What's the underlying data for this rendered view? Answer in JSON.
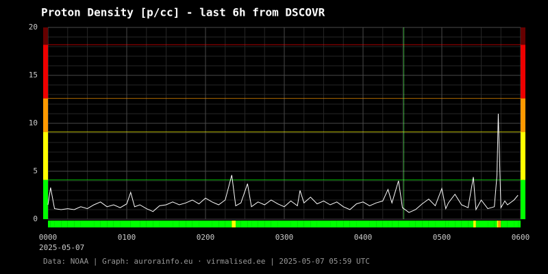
{
  "chart_data": {
    "type": "line",
    "title": "Proton Density [p/cc] - last 6h from DSCOVR",
    "x_date_label": "2025-05-07",
    "footer": "Data: NOAA | Graph: aurorainfo.eu · virmalised.ee | 2025-05-07 05:59 UTC",
    "x": [
      0,
      2,
      5,
      10,
      15,
      20,
      25,
      30,
      35,
      40,
      45,
      50,
      55,
      60,
      63,
      66,
      70,
      75,
      80,
      85,
      90,
      95,
      100,
      105,
      110,
      115,
      120,
      125,
      130,
      135,
      140,
      143,
      147,
      152,
      155,
      160,
      165,
      170,
      175,
      180,
      185,
      190,
      192,
      195,
      200,
      205,
      210,
      215,
      220,
      225,
      230,
      235,
      240,
      245,
      250,
      255,
      259,
      262,
      267,
      270,
      275,
      280,
      285,
      290,
      295,
      300,
      303,
      305,
      310,
      315,
      320,
      324,
      326,
      330,
      335,
      340,
      342,
      343,
      345,
      348,
      350,
      355,
      358
    ],
    "series": [
      {
        "color": "#ffffff",
        "values": [
          1.5,
          3.3,
          1.1,
          1.0,
          1.1,
          1.0,
          1.3,
          1.1,
          1.5,
          1.8,
          1.3,
          1.5,
          1.2,
          1.6,
          2.8,
          1.3,
          1.5,
          1.1,
          0.8,
          1.4,
          1.5,
          1.8,
          1.5,
          1.7,
          2.0,
          1.6,
          2.2,
          1.8,
          1.5,
          2.0,
          4.6,
          1.4,
          1.7,
          3.7,
          1.3,
          1.8,
          1.5,
          2.0,
          1.6,
          1.3,
          1.9,
          1.4,
          3.0,
          1.7,
          2.3,
          1.6,
          1.9,
          1.5,
          1.8,
          1.3,
          1.0,
          1.6,
          1.8,
          1.4,
          1.7,
          1.9,
          3.1,
          1.7,
          4.0,
          1.2,
          0.7,
          1.0,
          1.6,
          2.1,
          1.4,
          3.2,
          1.1,
          1.7,
          2.6,
          1.5,
          1.2,
          4.4,
          1.0,
          2.0,
          1.1,
          1.3,
          4.6,
          11.0,
          1.2,
          1.9,
          1.5,
          2.0,
          2.5
        ]
      }
    ],
    "xlim": [
      0,
      360
    ],
    "xticks": [
      {
        "value": 0,
        "label": "0000"
      },
      {
        "value": 60,
        "label": "0100"
      },
      {
        "value": 120,
        "label": "0200"
      },
      {
        "value": 180,
        "label": "0300"
      },
      {
        "value": 240,
        "label": "0400"
      },
      {
        "value": 300,
        "label": "0500"
      },
      {
        "value": 360,
        "label": "0600"
      }
    ],
    "xminor_ticks": [
      15,
      30,
      45,
      75,
      90,
      105,
      135,
      150,
      165,
      195,
      210,
      225,
      255,
      270,
      285,
      315,
      330,
      345
    ],
    "ylim": [
      0,
      20
    ],
    "yticks": [
      0,
      5,
      10,
      15,
      20
    ],
    "yminor_ticks": [
      1,
      2,
      3,
      4,
      6,
      7,
      8,
      9,
      11,
      12,
      13,
      14,
      16,
      17,
      18,
      19
    ],
    "marker_x": 271,
    "marker_color": "#66ff66",
    "levels": [
      {
        "from": 0,
        "to": 4.1,
        "color": "#00ff00"
      },
      {
        "from": 4.1,
        "to": 9.1,
        "color": "#ffff00"
      },
      {
        "from": 9.1,
        "to": 12.6,
        "color": "#ff9900"
      },
      {
        "from": 12.6,
        "to": 18.2,
        "color": "#ee0000"
      },
      {
        "from": 18.2,
        "to": 20,
        "color": "#660000"
      }
    ],
    "grid": true
  }
}
